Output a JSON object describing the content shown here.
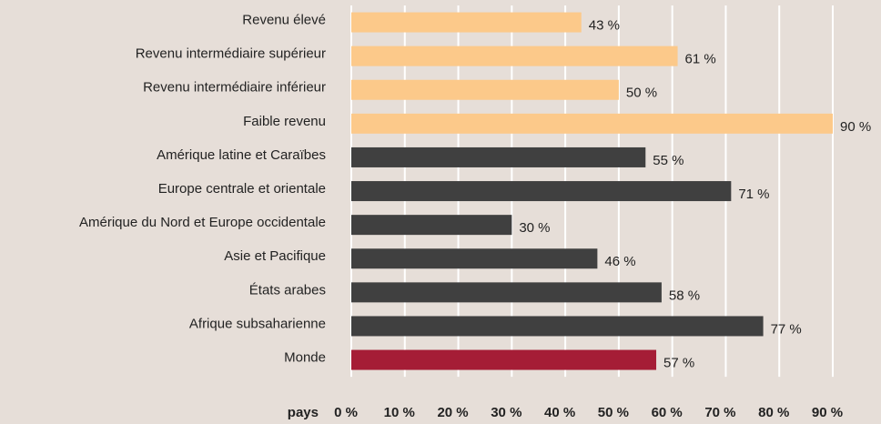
{
  "chart_data": {
    "type": "bar",
    "orientation": "horizontal",
    "categories": [
      "Revenu élevé",
      "Revenu intermédiaire supérieur",
      "Revenu intermédiaire inférieur",
      "Faible revenu",
      "Amérique latine et Caraïbes",
      "Europe centrale et orientale",
      "Amérique du Nord et Europe occidentale",
      "Asie et Pacifique",
      "États arabes",
      "Afrique subsaharienne",
      "Monde"
    ],
    "values": [
      43,
      61,
      50,
      90,
      55,
      71,
      30,
      46,
      58,
      77,
      57
    ],
    "value_labels": [
      "43 %",
      "61 %",
      "50 %",
      "90 %",
      "55 %",
      "71 %",
      "30 %",
      "46 %",
      "58 %",
      "77 %",
      "57 %"
    ],
    "colors": [
      "#fcc98a",
      "#fcc98a",
      "#fcc98a",
      "#fcc98a",
      "#404040",
      "#404040",
      "#404040",
      "#404040",
      "#404040",
      "#404040",
      "#a51d36"
    ],
    "xlabel": "pays",
    "xlim": [
      0,
      90
    ],
    "xticks": [
      {
        "value": 0,
        "label": "0 %"
      },
      {
        "value": 10,
        "label": "10 %"
      },
      {
        "value": 20,
        "label": "20 %"
      },
      {
        "value": 30,
        "label": "30 %"
      },
      {
        "value": 40,
        "label": "40 %"
      },
      {
        "value": 50,
        "label": "50 %"
      },
      {
        "value": 60,
        "label": "60 %"
      },
      {
        "value": 70,
        "label": "70 %"
      },
      {
        "value": 80,
        "label": "80 %"
      },
      {
        "value": 90,
        "label": "90 %"
      }
    ],
    "grid": true
  }
}
